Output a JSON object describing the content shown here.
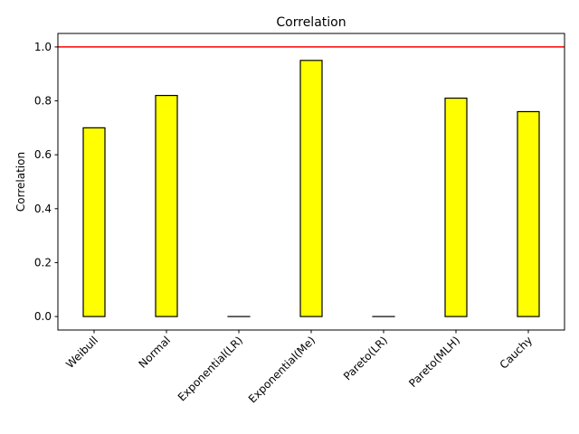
{
  "chart_data": {
    "type": "bar",
    "title": "Correlation",
    "xlabel": "",
    "ylabel": "Correlation",
    "categories": [
      "Weibull",
      "Normal",
      "Exponential(LR)",
      "Exponential(Me)",
      "Pareto(LR)",
      "Pareto(MLH)",
      "Cauchy"
    ],
    "values": [
      0.7,
      0.82,
      0.0,
      0.95,
      0.0,
      0.81,
      0.76
    ],
    "ylim": [
      -0.05,
      1.05
    ],
    "yticks": [
      0.0,
      0.2,
      0.4,
      0.6,
      0.8,
      1.0
    ],
    "ytick_labels": [
      "0.0",
      "0.2",
      "0.4",
      "0.6",
      "0.8",
      "1.0"
    ],
    "reference_line": {
      "y": 1.0,
      "color": "#ff0000"
    },
    "bar_color": "#ffff00",
    "bar_edge_color": "#000000",
    "grid": false,
    "legend": "none",
    "xtick_rotation_deg": 45
  }
}
